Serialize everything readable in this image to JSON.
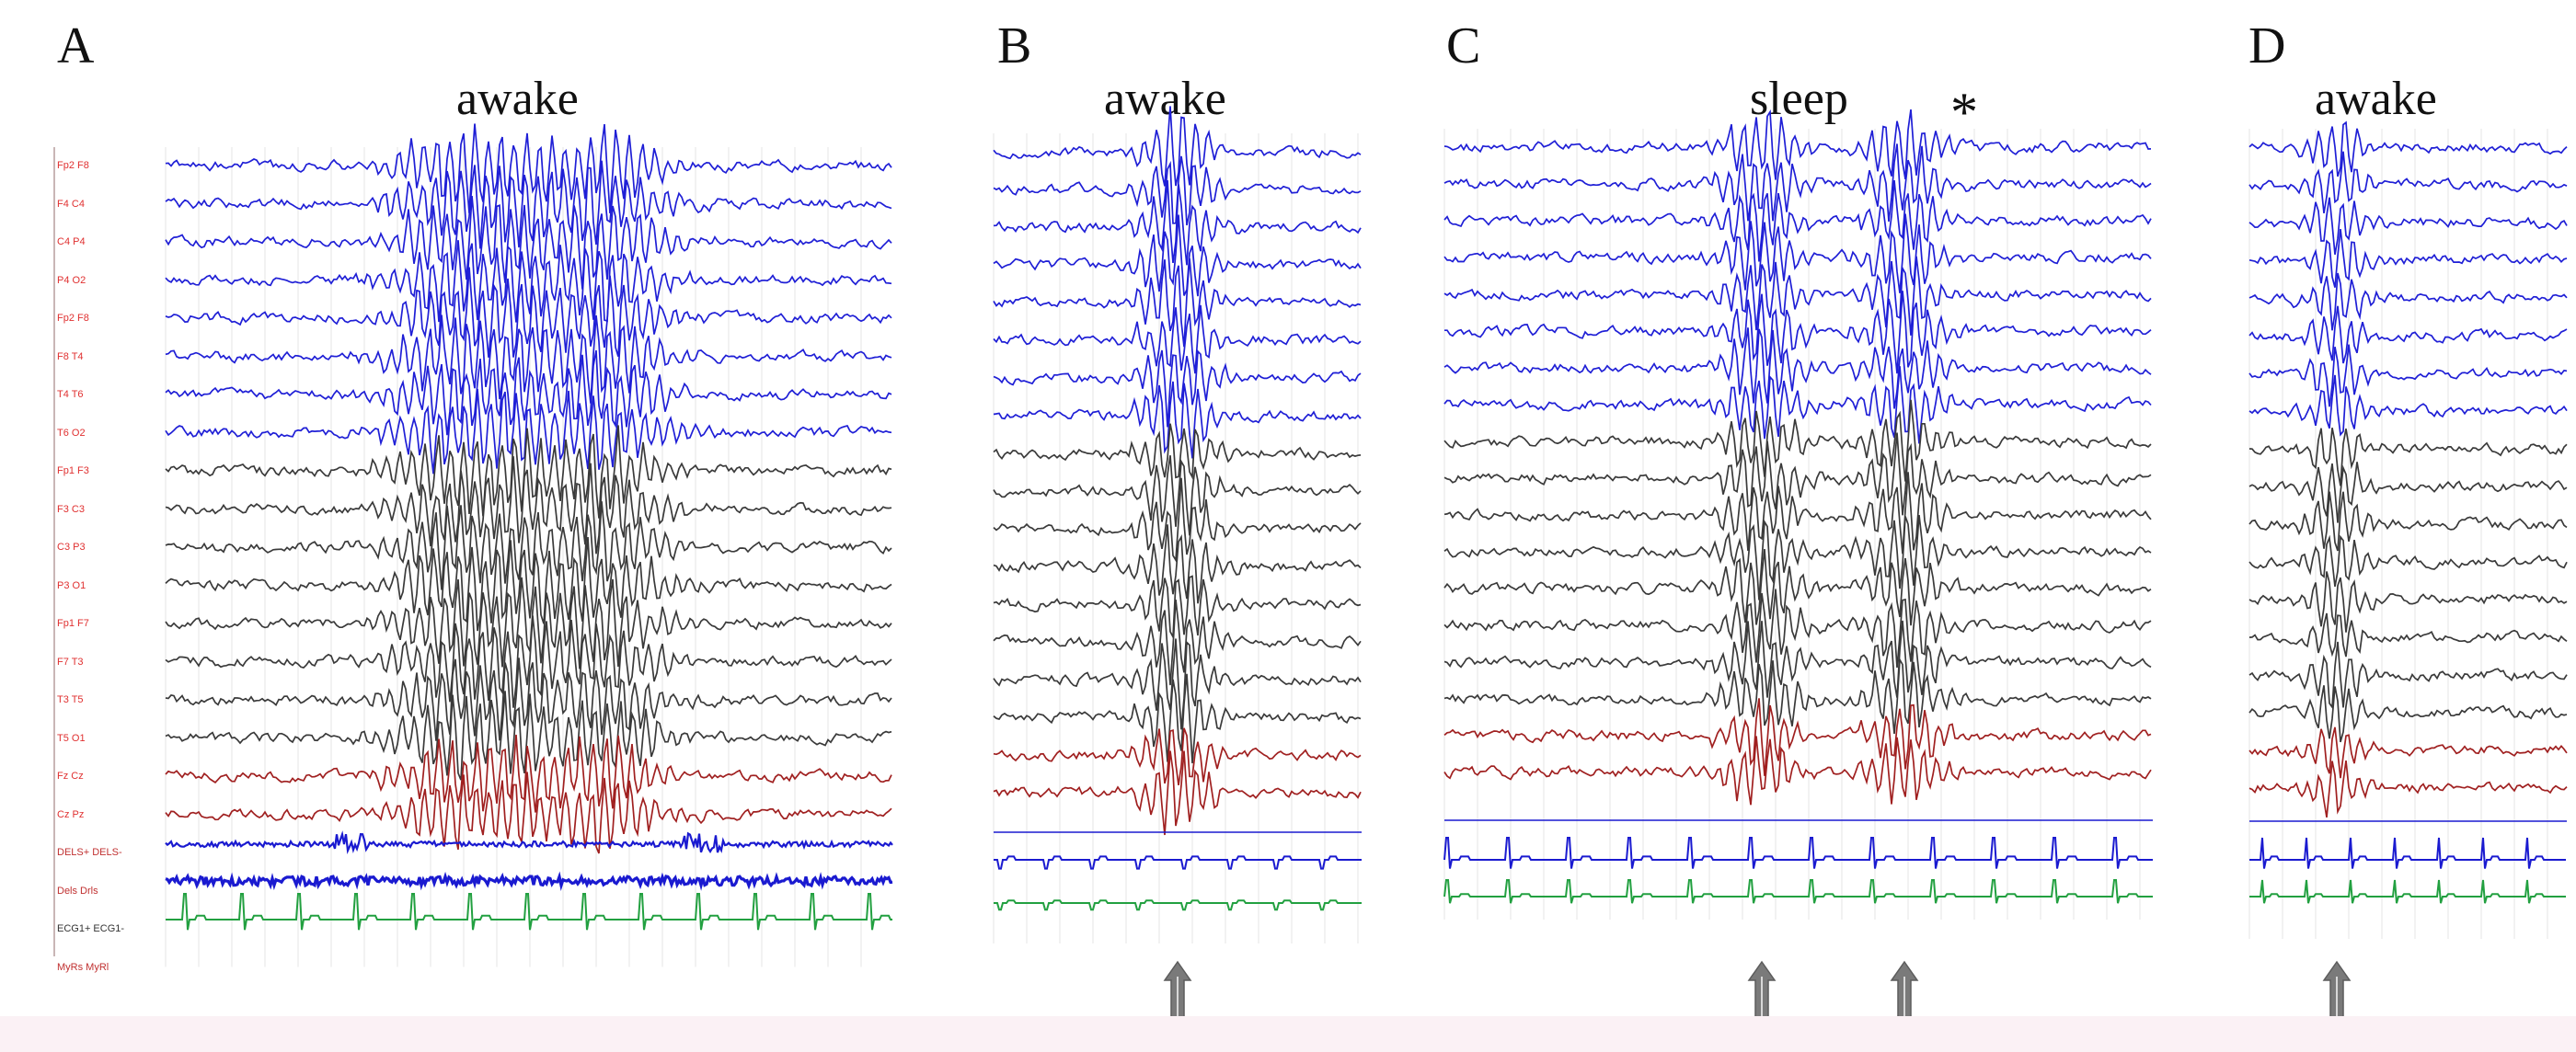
{
  "panels": [
    {
      "letter": "A",
      "state": "awake"
    },
    {
      "letter": "B",
      "state": "awake"
    },
    {
      "letter": "C",
      "state": "sleep",
      "marker": "*"
    },
    {
      "letter": "D",
      "state": "awake"
    }
  ],
  "channel_labels": [
    "Fp2 F8",
    "F4 C4",
    "C4 P4",
    "P4 O2",
    "Fp2 F8",
    "F8 T4",
    "T4 T6",
    "T6 O2",
    "Fp1 F3",
    "F3 C3",
    "C3 P3",
    "P3 O1",
    "Fp1 F7",
    "F7 T3",
    "T3 T5",
    "T5 O1",
    "Fz Cz",
    "Cz Pz",
    "DELS+ DELS-",
    "Dels Drls",
    "ECG1+ ECG1-",
    "MyRs MyRl"
  ],
  "colors": {
    "right_hemisphere": "#1f1fd6",
    "left_hemisphere": "#3a3a3a",
    "midline": "#a02020",
    "emg": "#1a1ad0",
    "ecg": "#22a040",
    "label": "#e03030",
    "arrow": "#7a7a7a"
  },
  "icons": [
    "up-arrow-icon"
  ]
}
